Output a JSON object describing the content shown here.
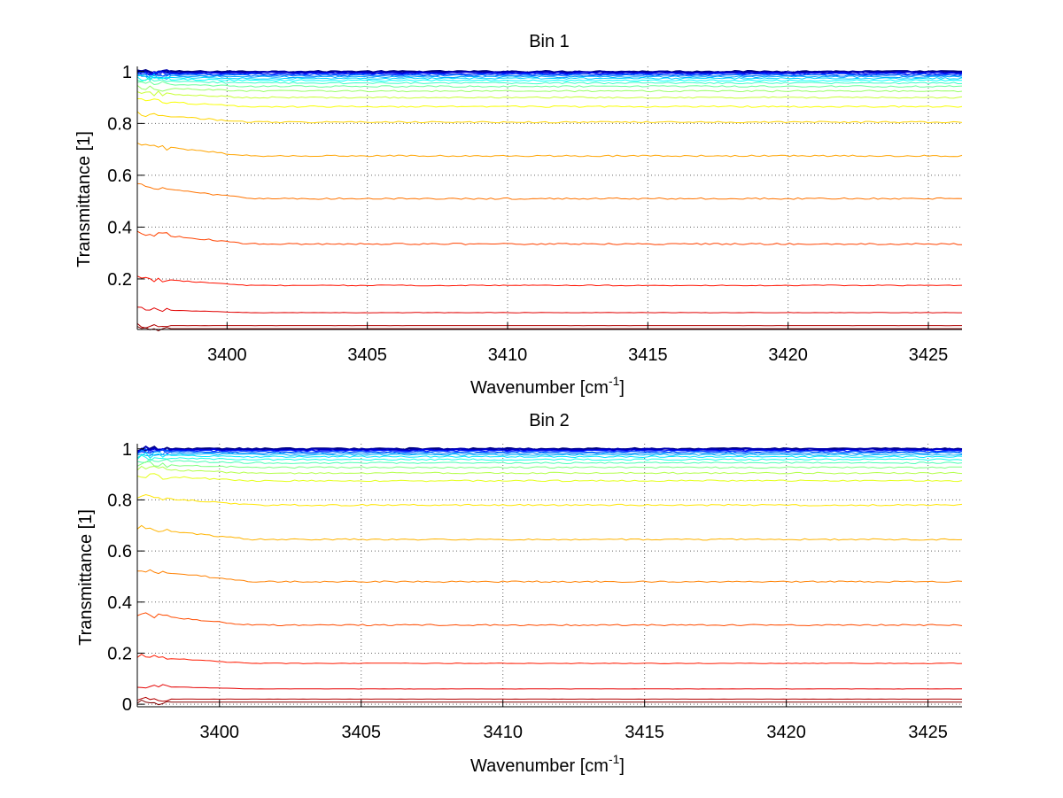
{
  "chart_data": [
    {
      "type": "line",
      "title": "Bin 1",
      "xlabel": "Wavenumber [cm",
      "xlabel_sup": "-1",
      "xlabel_end": "]",
      "ylabel": "Transmittance [1]",
      "xlim": [
        3396.8,
        3426.2
      ],
      "ylim": [
        0.005,
        1.02
      ],
      "xticks": [
        3400,
        3405,
        3410,
        3415,
        3420,
        3425
      ],
      "yticks": [
        0.2,
        0.4,
        0.6,
        0.8,
        1
      ],
      "ytick_labels": [
        "0.2",
        "0.4",
        "0.6",
        "0.8",
        "1"
      ],
      "grid": true,
      "colormap": "jet",
      "series_levels": [
        1.0,
        0.998,
        0.995,
        0.992,
        0.989,
        0.985,
        0.98,
        0.974,
        0.966,
        0.956,
        0.943,
        0.925,
        0.9,
        0.865,
        0.805,
        0.675,
        0.51,
        0.335,
        0.175,
        0.07,
        0.02,
        0.008
      ]
    },
    {
      "type": "line",
      "title": "Bin 2",
      "xlabel": "Wavenumber [cm",
      "xlabel_sup": "-1",
      "xlabel_end": "]",
      "ylabel": "Transmittance [1]",
      "xlim": [
        3397.1,
        3426.2
      ],
      "ylim": [
        -0.01,
        1.02
      ],
      "xticks": [
        3400,
        3405,
        3410,
        3415,
        3420,
        3425
      ],
      "yticks": [
        0,
        0.2,
        0.4,
        0.6,
        0.8,
        1
      ],
      "ytick_labels": [
        "0",
        "0.2",
        "0.4",
        "0.6",
        "0.8",
        "1"
      ],
      "grid": true,
      "colormap": "jet",
      "series_levels": [
        1.0,
        0.998,
        0.995,
        0.992,
        0.988,
        0.983,
        0.977,
        0.969,
        0.958,
        0.945,
        0.927,
        0.905,
        0.875,
        0.78,
        0.645,
        0.48,
        0.31,
        0.16,
        0.06,
        0.02,
        0.008
      ]
    }
  ]
}
